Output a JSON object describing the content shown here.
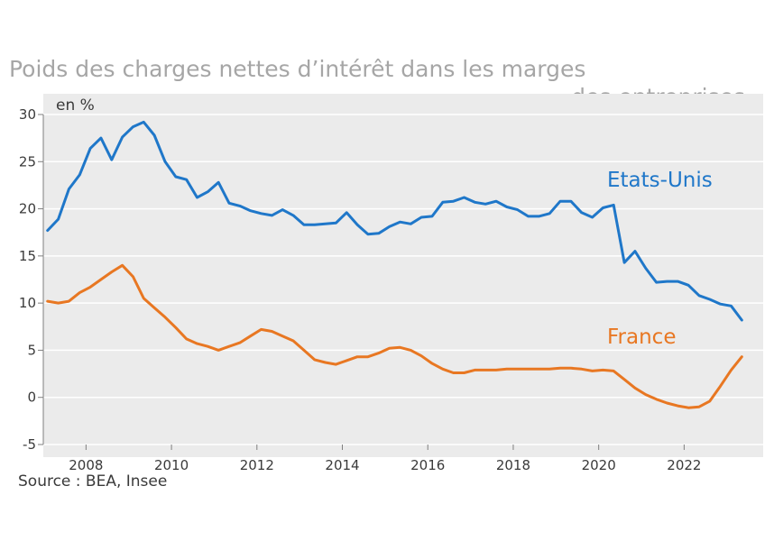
{
  "colors": {
    "background": "#ffffff",
    "plot_background": "#ebebeb",
    "title": "#a6a6a6",
    "text": "#3a3a3a",
    "axis": "#7f7f7f"
  },
  "source": "Source : BEA, Insee",
  "chart_data": {
    "type": "line",
    "title_line1": "Poids des charges nettes d’intérêt dans les marges",
    "title_line2": "des entreprises",
    "ylabel": "en %",
    "xlim": [
      2007.0,
      2023.85
    ],
    "ylim": [
      -5,
      30
    ],
    "yticks": [
      -5,
      0,
      5,
      10,
      15,
      20,
      25,
      30
    ],
    "ytick_labels": [
      "-5",
      "0",
      "5",
      "10",
      "15",
      "20",
      "25",
      "30"
    ],
    "xticks": [
      2008,
      2010,
      2012,
      2014,
      2016,
      2018,
      2020,
      2022
    ],
    "xtick_labels": [
      "2008",
      "2010",
      "2012",
      "2014",
      "2016",
      "2018",
      "2020",
      "2022"
    ],
    "series": [
      {
        "name": "Etats-Unis",
        "label": "Etats-Unis",
        "color": "#1f77c9",
        "x": [
          2007.1,
          2007.35,
          2007.6,
          2007.85,
          2008.1,
          2008.35,
          2008.6,
          2008.85,
          2009.1,
          2009.35,
          2009.6,
          2009.85,
          2010.1,
          2010.35,
          2010.6,
          2010.85,
          2011.1,
          2011.35,
          2011.6,
          2011.85,
          2012.1,
          2012.35,
          2012.6,
          2012.85,
          2013.1,
          2013.35,
          2013.6,
          2013.85,
          2014.1,
          2014.35,
          2014.6,
          2014.85,
          2015.1,
          2015.35,
          2015.6,
          2015.85,
          2016.1,
          2016.35,
          2016.6,
          2016.85,
          2017.1,
          2017.35,
          2017.6,
          2017.85,
          2018.1,
          2018.35,
          2018.6,
          2018.85,
          2019.1,
          2019.35,
          2019.6,
          2019.85,
          2020.1,
          2020.35,
          2020.6,
          2020.85,
          2021.1,
          2021.35,
          2021.6,
          2021.85,
          2022.1,
          2022.35,
          2022.6,
          2022.85,
          2023.1,
          2023.35
        ],
        "values": [
          17.7,
          18.9,
          22.1,
          23.6,
          26.4,
          27.5,
          25.2,
          27.6,
          28.7,
          29.2,
          27.8,
          25.0,
          23.4,
          23.1,
          21.2,
          21.8,
          22.8,
          20.6,
          20.3,
          19.8,
          19.5,
          19.3,
          19.9,
          19.3,
          18.3,
          18.3,
          18.4,
          18.5,
          19.6,
          18.3,
          17.3,
          17.4,
          18.1,
          18.6,
          18.4,
          19.1,
          19.2,
          20.7,
          20.8,
          21.2,
          20.7,
          20.5,
          20.8,
          20.2,
          19.9,
          19.2,
          19.2,
          19.5,
          20.8,
          20.8,
          19.6,
          19.1,
          20.1,
          20.4,
          14.3,
          15.5,
          13.7,
          12.2,
          12.3,
          12.3,
          11.9,
          10.8,
          10.4,
          9.9,
          9.7,
          8.2
        ]
      },
      {
        "name": "France",
        "label": "France",
        "color": "#e87722",
        "x": [
          2007.1,
          2007.35,
          2007.6,
          2007.85,
          2008.1,
          2008.35,
          2008.6,
          2008.85,
          2009.1,
          2009.35,
          2009.6,
          2009.85,
          2010.1,
          2010.35,
          2010.6,
          2010.85,
          2011.1,
          2011.35,
          2011.6,
          2011.85,
          2012.1,
          2012.35,
          2012.6,
          2012.85,
          2013.1,
          2013.35,
          2013.6,
          2013.85,
          2014.1,
          2014.35,
          2014.6,
          2014.85,
          2015.1,
          2015.35,
          2015.6,
          2015.85,
          2016.1,
          2016.35,
          2016.6,
          2016.85,
          2017.1,
          2017.35,
          2017.6,
          2017.85,
          2018.1,
          2018.35,
          2018.6,
          2018.85,
          2019.1,
          2019.35,
          2019.6,
          2019.85,
          2020.1,
          2020.35,
          2020.6,
          2020.85,
          2021.1,
          2021.35,
          2021.6,
          2021.85,
          2022.1,
          2022.35,
          2022.6,
          2022.85,
          2023.1,
          2023.35
        ],
        "values": [
          10.2,
          10.0,
          10.2,
          11.1,
          11.7,
          12.5,
          13.3,
          14.0,
          12.8,
          10.5,
          9.5,
          8.5,
          7.4,
          6.2,
          5.7,
          5.4,
          5.0,
          5.4,
          5.8,
          6.5,
          7.2,
          7.0,
          6.5,
          6.0,
          5.0,
          4.0,
          3.7,
          3.5,
          3.9,
          4.3,
          4.3,
          4.7,
          5.2,
          5.3,
          5.0,
          4.4,
          3.6,
          3.0,
          2.6,
          2.6,
          2.9,
          2.9,
          2.9,
          3.0,
          3.0,
          3.0,
          3.0,
          3.0,
          3.1,
          3.1,
          3.0,
          2.8,
          2.9,
          2.8,
          1.9,
          1.0,
          0.3,
          -0.2,
          -0.6,
          -0.9,
          -1.1,
          -1.0,
          -0.4,
          1.2,
          2.9,
          4.3
        ]
      }
    ]
  }
}
